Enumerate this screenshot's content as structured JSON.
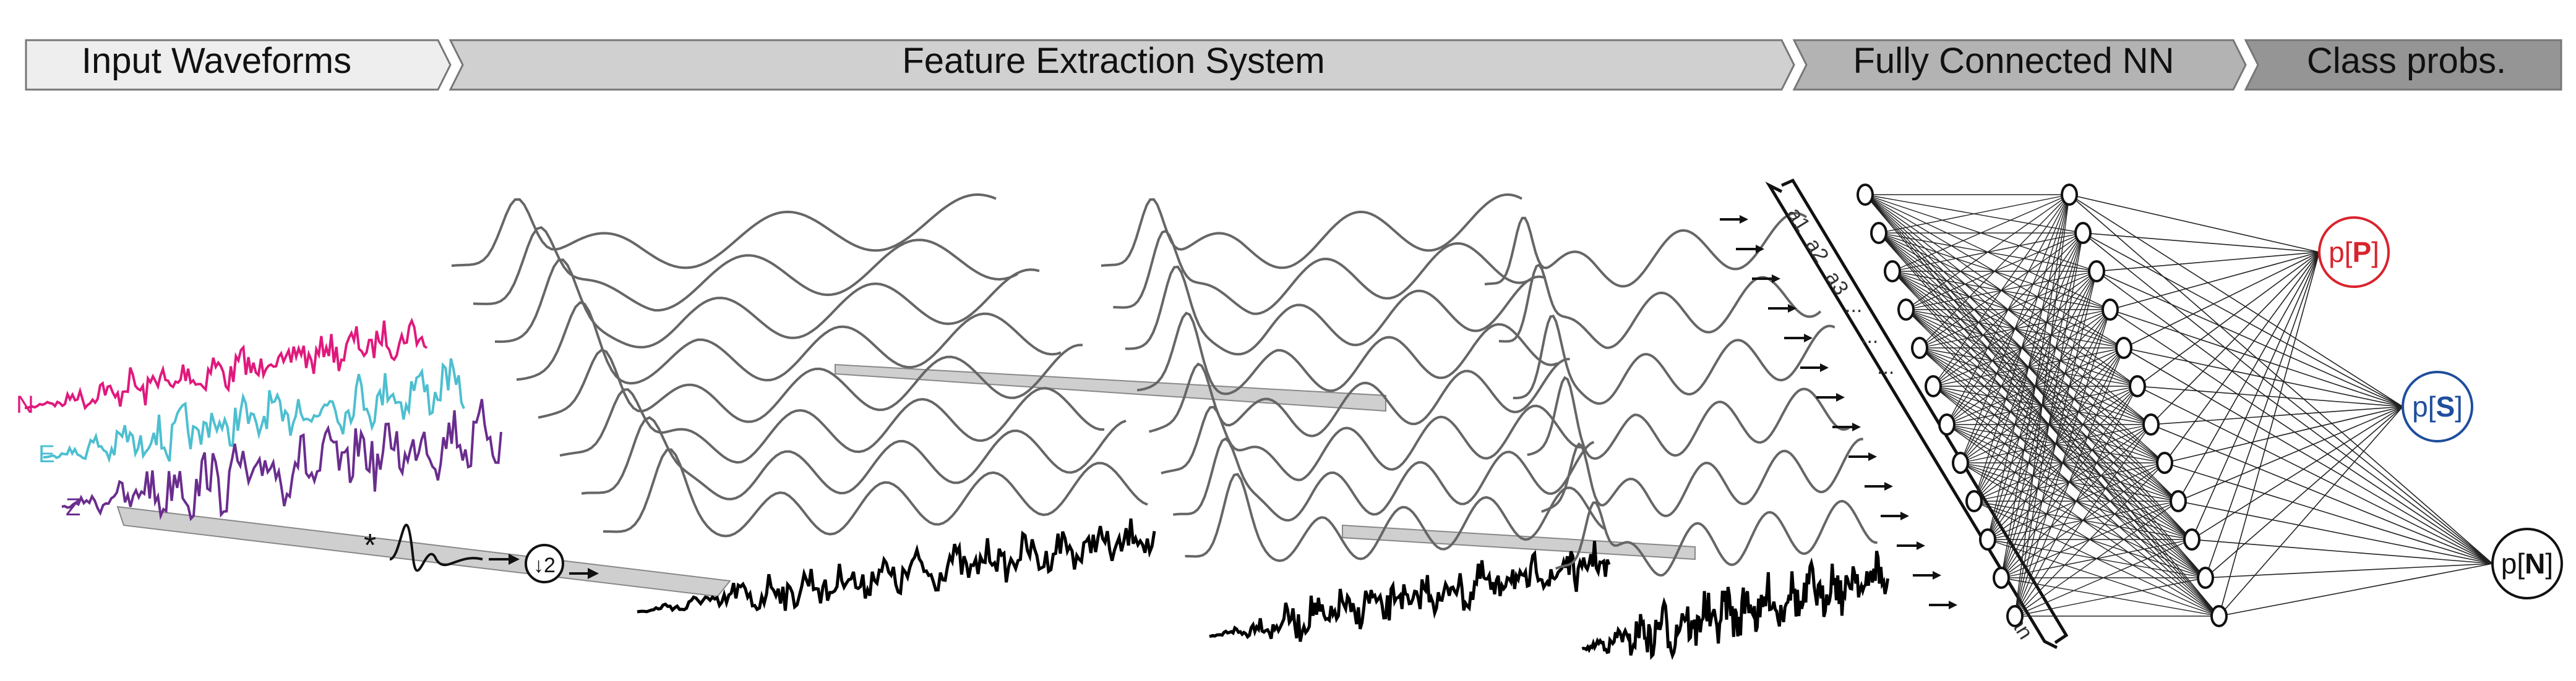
{
  "stages": [
    {
      "label": "Input Waveforms",
      "fill": "#eeeeee"
    },
    {
      "label": "Feature Extraction System",
      "fill": "#d0d0d0"
    },
    {
      "label": "Fully Connected NN",
      "fill": "#b3b3b3"
    },
    {
      "label": "Class probs.",
      "fill": "#959595"
    }
  ],
  "channels": [
    {
      "label": "N",
      "color": "#e0197d"
    },
    {
      "label": "E",
      "color": "#4dbfd0"
    },
    {
      "label": "Z",
      "color": "#6a2d8e"
    }
  ],
  "pipeline": {
    "convolve_symbol": "*",
    "downsample_symbol": "↓2"
  },
  "features": {
    "labels": [
      "a1",
      "a2",
      "a3",
      "...",
      "...",
      "...",
      "an"
    ]
  },
  "outputs": [
    {
      "prefix": "p[",
      "letter": "P",
      "suffix": "]",
      "color": "#d9232d"
    },
    {
      "prefix": "p[",
      "letter": "S",
      "suffix": "]",
      "color": "#1f4e9c"
    },
    {
      "prefix": "p[",
      "letter": "N",
      "suffix": "]",
      "color": "#111111"
    }
  ]
}
